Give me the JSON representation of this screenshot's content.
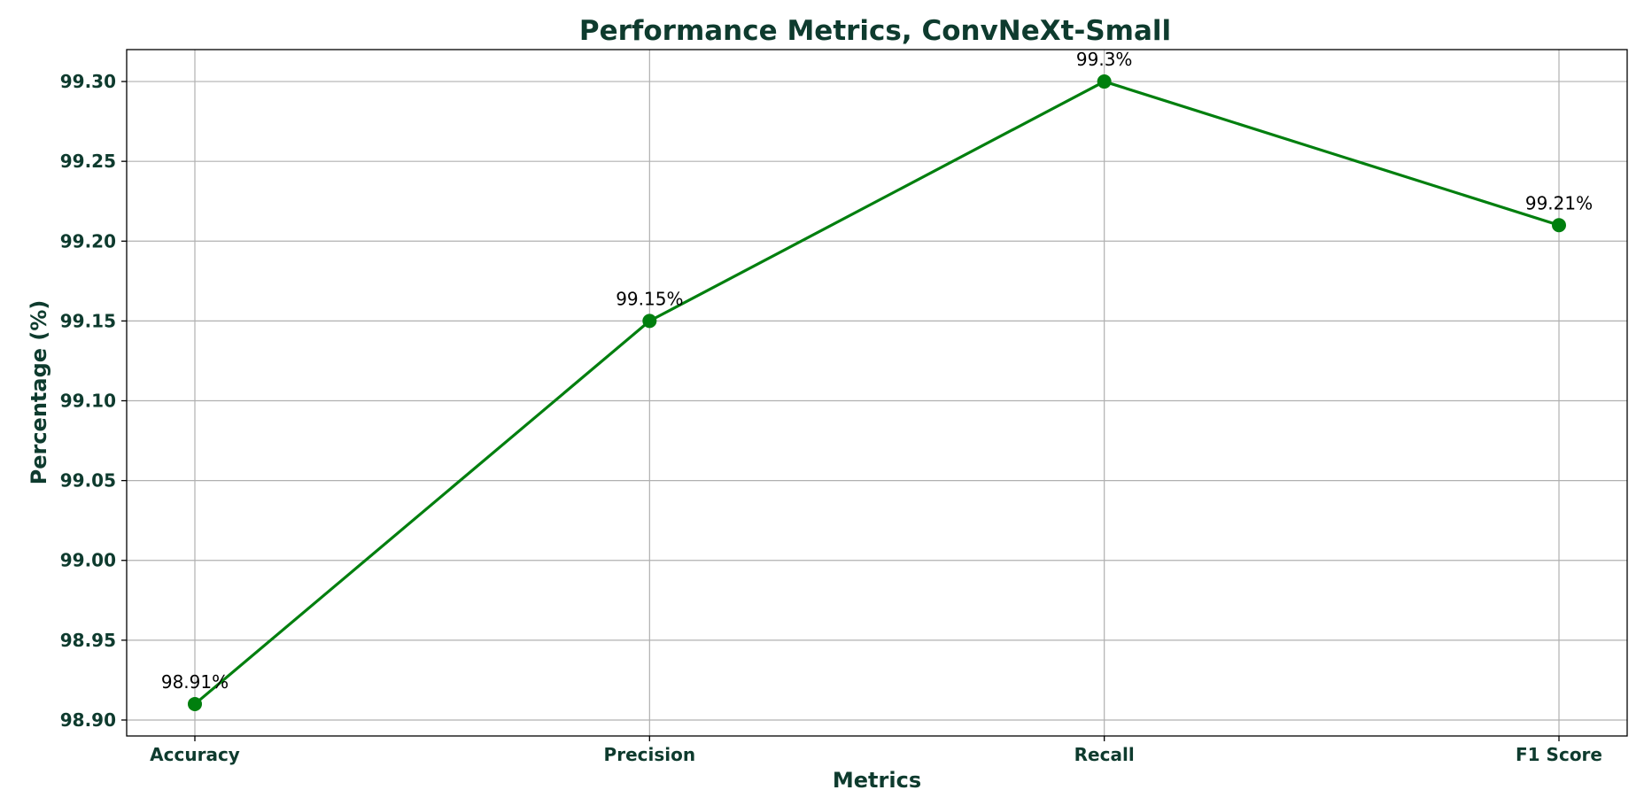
{
  "chart_data": {
    "type": "line",
    "title": "Performance Metrics, ConvNeXt-Small",
    "xlabel": "Metrics",
    "ylabel": "Percentage (%)",
    "categories": [
      "Accuracy",
      "Precision",
      "Recall",
      "F1 Score"
    ],
    "series": [
      {
        "values": [
          98.91,
          99.15,
          99.3,
          99.21
        ],
        "color": "#007f0e"
      }
    ],
    "data_labels": [
      "98.91%",
      "99.15%",
      "99.3%",
      "99.21%"
    ],
    "ylim": [
      98.89,
      99.32
    ],
    "yticks": [
      "98.90",
      "98.95",
      "99.00",
      "99.05",
      "99.10",
      "99.15",
      "99.20",
      "99.25",
      "99.30"
    ],
    "grid": true,
    "text_color": "#0e3b2e"
  }
}
